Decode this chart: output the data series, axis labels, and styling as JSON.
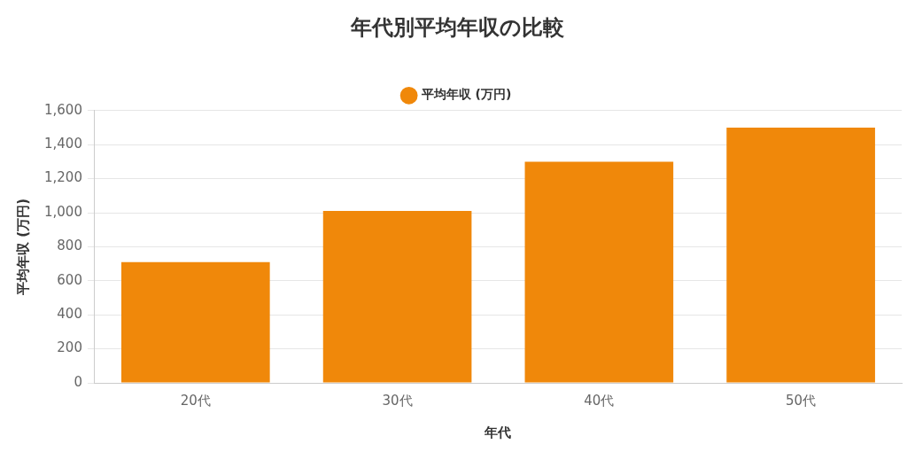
{
  "chart_data": {
    "type": "bar",
    "title": "年代別平均年収の比較",
    "xlabel": "年代",
    "ylabel": "平均年収 (万円)",
    "categories": [
      "20代",
      "30代",
      "40代",
      "50代"
    ],
    "series": [
      {
        "name": "平均年収 (万円)",
        "color": "#f0880a",
        "values": [
          710,
          1010,
          1300,
          1500
        ]
      }
    ],
    "ylim": [
      0,
      1600
    ],
    "yticks": [
      0,
      200,
      400,
      600,
      800,
      {
        "value": 1000,
        "label": "1,000"
      },
      {
        "value": 1200,
        "label": "1,200"
      },
      {
        "value": 1400,
        "label": "1,400"
      },
      {
        "value": 1600,
        "label": "1,600"
      }
    ],
    "grid": "y",
    "legend": "top"
  }
}
